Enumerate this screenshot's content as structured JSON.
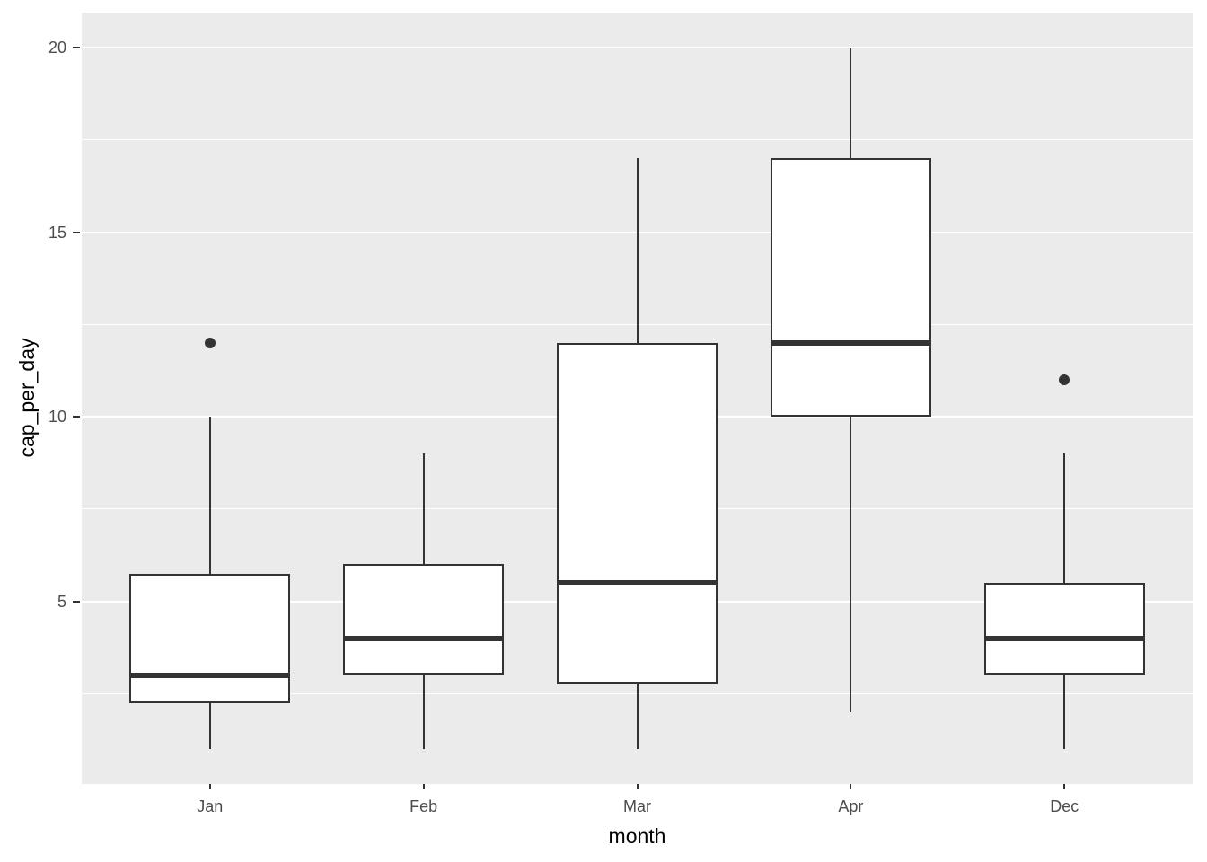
{
  "chart_data": {
    "type": "boxplot",
    "title": "",
    "xlabel": "month",
    "ylabel": "cap_per_day",
    "categories": [
      "Jan",
      "Feb",
      "Mar",
      "Apr",
      "Dec"
    ],
    "series": [
      {
        "category": "Jan",
        "whisker_low": 1,
        "q1": 2.25,
        "median": 3,
        "q3": 5.75,
        "whisker_high": 10,
        "outliers": [
          12
        ]
      },
      {
        "category": "Feb",
        "whisker_low": 1,
        "q1": 3,
        "median": 4,
        "q3": 6,
        "whisker_high": 9,
        "outliers": []
      },
      {
        "category": "Mar",
        "whisker_low": 1,
        "q1": 2.75,
        "median": 5.5,
        "q3": 12,
        "whisker_high": 17,
        "outliers": []
      },
      {
        "category": "Apr",
        "whisker_low": 2,
        "q1": 10,
        "median": 12,
        "q3": 17,
        "whisker_high": 20,
        "outliers": []
      },
      {
        "category": "Dec",
        "whisker_low": 1,
        "q1": 3,
        "median": 4,
        "q3": 5.5,
        "whisker_high": 9,
        "outliers": [
          11
        ]
      }
    ],
    "y_ticks": [
      5,
      10,
      15,
      20
    ],
    "y_minor_gridlines": [
      2.5,
      7.5,
      12.5,
      17.5
    ],
    "ylim": [
      0.05,
      20.95
    ],
    "grid": "on",
    "legend": "none",
    "box_relative_width": 0.75
  },
  "colors": {
    "page_bg": "#FFFFFF",
    "panel_bg": "#EBEBEB",
    "grid": "#FFFFFF",
    "line": "#333333",
    "box_fill": "#FFFFFF",
    "axis_text": "#4D4D4D",
    "axis_title": "#000000"
  }
}
